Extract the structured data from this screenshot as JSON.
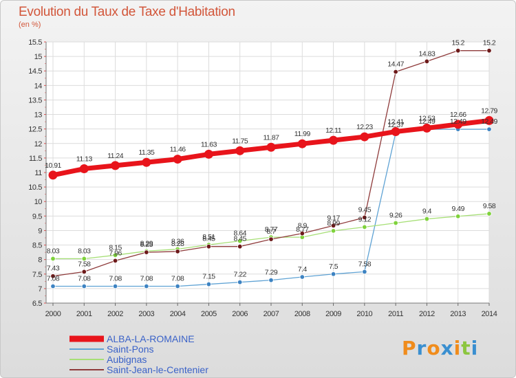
{
  "chart_data": {
    "type": "line",
    "title": "Evolution du Taux de Taxe d'Habitation",
    "ylabel": "(en %)",
    "x": [
      "2000",
      "2001",
      "2002",
      "2003",
      "2004",
      "2005",
      "2006",
      "2007",
      "2008",
      "2009",
      "2010",
      "2011",
      "2012",
      "2013",
      "2014"
    ],
    "ylim": [
      6.5,
      15.5
    ],
    "yticks": [
      "6.5",
      "7",
      "7.5",
      "8",
      "8.5",
      "9",
      "9.5",
      "10",
      "10.5",
      "11",
      "11.5",
      "12",
      "12.5",
      "13",
      "13.5",
      "14",
      "14.5",
      "15",
      "15.5"
    ],
    "grid": true,
    "legend": "bottom-left",
    "series": [
      {
        "name": "ALBA-LA-ROMAINE",
        "color": "#e8141b",
        "markerColor": "#e8141b",
        "width": 7,
        "markerR": 6.5,
        "values": [
          10.91,
          11.13,
          11.24,
          11.35,
          11.46,
          11.63,
          11.75,
          11.87,
          11.99,
          12.11,
          12.23,
          12.41,
          12.53,
          12.66,
          12.79
        ],
        "labels": [
          "10.91",
          "11.13",
          "11.24",
          "11.35",
          "11.46",
          "11.63",
          "11.75",
          "11.87",
          "11.99",
          "12.11",
          "12.23",
          "12.41",
          "12.53",
          "12.66",
          "12.79"
        ]
      },
      {
        "name": "Saint-Pons",
        "color": "#5ea2d4",
        "markerColor": "#3d83c2",
        "width": 1.3,
        "markerR": 3.3,
        "values": [
          7.08,
          7.08,
          7.08,
          7.08,
          7.08,
          7.15,
          7.22,
          7.29,
          7.4,
          7.5,
          7.58,
          12.37,
          12.49,
          12.49,
          12.49
        ],
        "labels": [
          "7.08",
          "7.08",
          "7.08",
          "7.08",
          "7.08",
          "7.15",
          "7.22",
          "7.29",
          "7.4",
          "7.5",
          "7.58",
          "12.37",
          "12.49",
          "12.49",
          "12.49"
        ]
      },
      {
        "name": "Aubignas",
        "color": "#a6df75",
        "markerColor": "#7fd23c",
        "width": 1.3,
        "markerR": 3.3,
        "values": [
          8.03,
          8.03,
          8.15,
          8.29,
          8.36,
          8.51,
          8.64,
          8.77,
          8.77,
          8.99,
          9.12,
          9.26,
          9.4,
          9.49,
          9.58
        ],
        "labels": [
          "8.03",
          "8.03",
          "8.15",
          "8.29",
          "8.36",
          "8.51",
          "8.64",
          "8.77",
          "8.77",
          "8.99",
          "9.12",
          "9.26",
          "9.4",
          "9.49",
          "9.58"
        ]
      },
      {
        "name": "Saint-Jean-le-Centenier",
        "color": "#8e3a3a",
        "markerColor": "#6d1a1a",
        "width": 1.3,
        "markerR": 3.3,
        "values": [
          7.43,
          7.58,
          7.96,
          8.25,
          8.28,
          8.45,
          8.45,
          8.7,
          8.9,
          9.17,
          9.45,
          14.47,
          14.83,
          15.2,
          15.2
        ],
        "labels": [
          "7.43",
          "7.58",
          "7.96",
          "8.25",
          "8.28",
          "8.45",
          "8.45",
          "8.7",
          "8.9",
          "9.17",
          "9.45",
          "14.47",
          "14.83",
          "15.2",
          "15.2"
        ]
      }
    ]
  },
  "logo": {
    "letters": [
      "P",
      "r",
      "o",
      "x",
      "i",
      "t",
      "i"
    ],
    "colors": [
      "#f08c1c",
      "#3a8fd0",
      "#f08c1c",
      "#3a8fd0",
      "#f08c1c",
      "#8cc63f",
      "#3a8fd0"
    ]
  }
}
